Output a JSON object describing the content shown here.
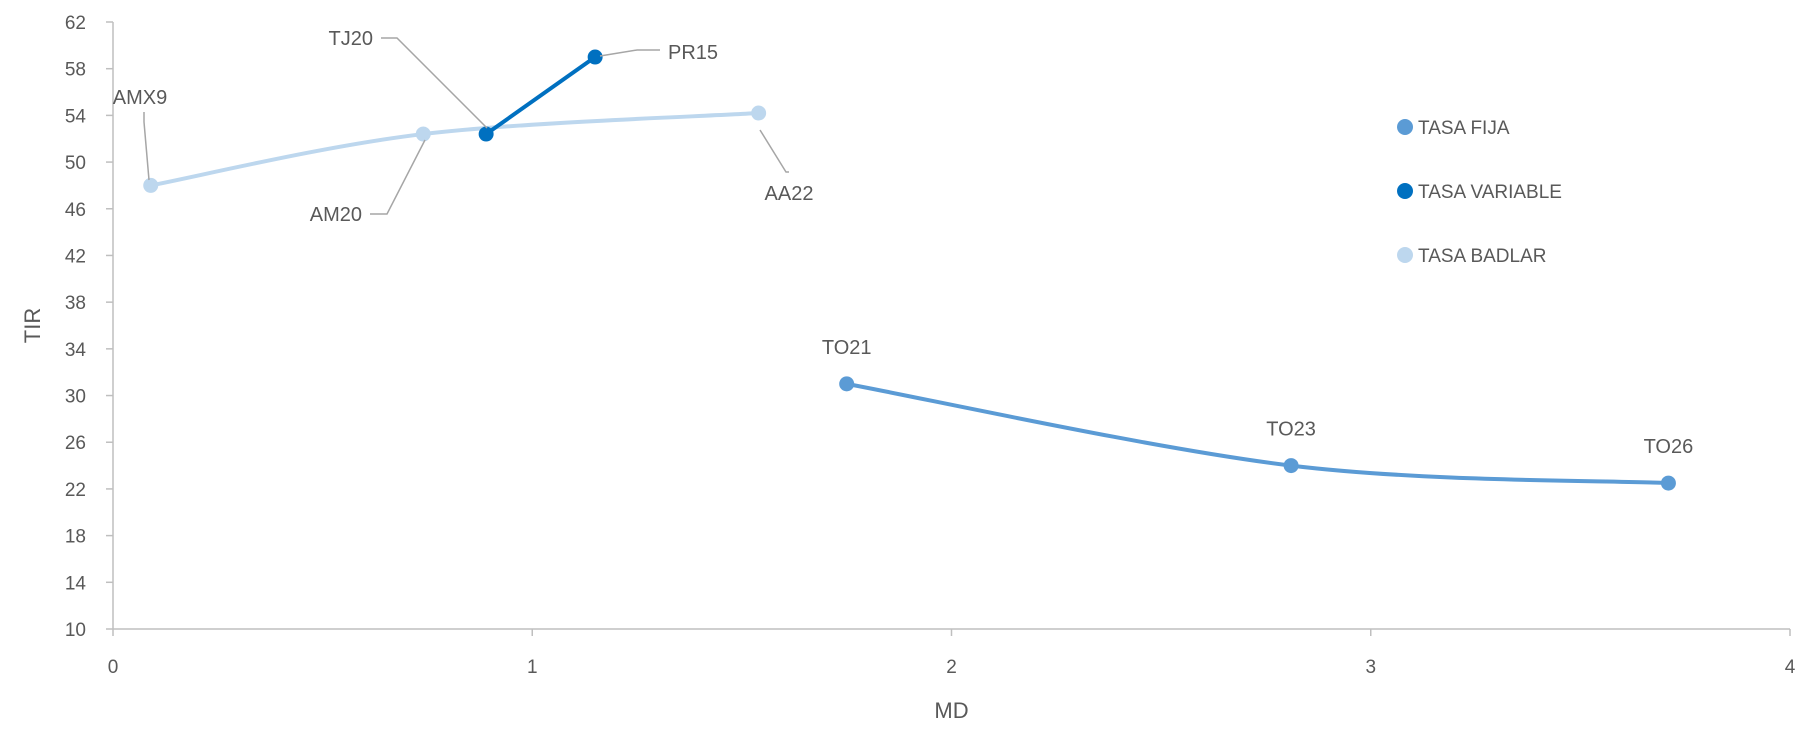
{
  "chart_data": {
    "type": "scatter",
    "xlabel": "MD",
    "ylabel": "TIR",
    "xlim": [
      0,
      4
    ],
    "ylim": [
      10,
      62
    ],
    "xticks": [
      0,
      1,
      2,
      3,
      4
    ],
    "yticks": [
      10,
      14,
      18,
      22,
      26,
      30,
      34,
      38,
      42,
      46,
      50,
      54,
      58,
      62
    ],
    "grid": false,
    "legend_position": "right",
    "series": [
      {
        "name": "TASA FIJA",
        "color": "#5b9bd5",
        "points": [
          {
            "label": "TO21",
            "x": 1.75,
            "y": 31.0
          },
          {
            "label": "TO23",
            "x": 2.81,
            "y": 24.0
          },
          {
            "label": "TO26",
            "x": 3.71,
            "y": 22.5
          }
        ]
      },
      {
        "name": "TASA VARIABLE",
        "color": "#0070c0",
        "points": [
          {
            "label": "TJ20",
            "x": 0.89,
            "y": 52.4
          },
          {
            "label": "PR15",
            "x": 1.15,
            "y": 59.0
          }
        ]
      },
      {
        "name": "TASA BADLAR",
        "color": "#bdd7ee",
        "points": [
          {
            "label": "AMX9",
            "x": 0.09,
            "y": 48.0
          },
          {
            "label": "AM20",
            "x": 0.74,
            "y": 52.4
          },
          {
            "label": "AA22",
            "x": 1.54,
            "y": 54.2
          }
        ]
      }
    ]
  }
}
